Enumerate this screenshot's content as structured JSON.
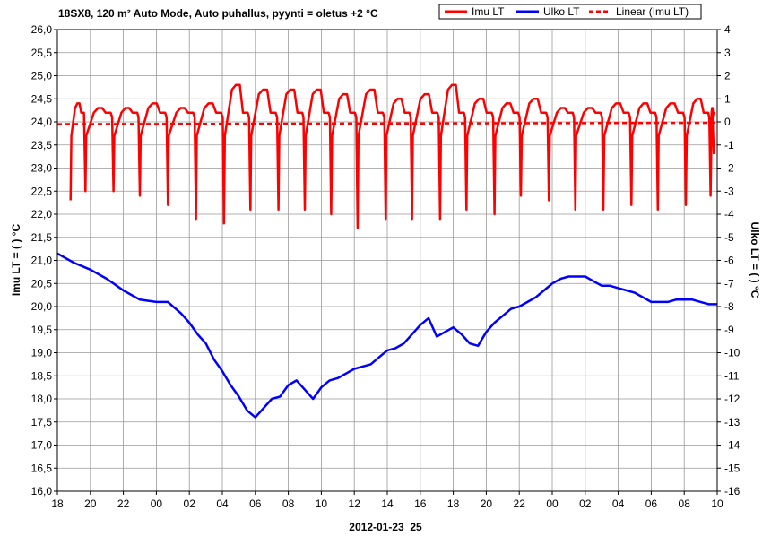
{
  "chart_data": {
    "type": "line",
    "title": "18SX8, 120 m² Auto Mode, Auto puhallus, pyynti = oletus +2 °C",
    "xlabel": "2012-01-23_25",
    "ylabel_left": "Imu LT = ( ) °C",
    "ylabel_right": "Ulko LT = ( ) °C",
    "x_tick_labels": [
      "18",
      "20",
      "22",
      "00",
      "02",
      "04",
      "06",
      "08",
      "10",
      "12",
      "14",
      "16",
      "18",
      "20",
      "22",
      "00",
      "02",
      "04",
      "06",
      "08",
      "10"
    ],
    "y_left_range": [
      16.0,
      26.0
    ],
    "y_left_ticks": [
      "26,0",
      "25,5",
      "25,0",
      "24,5",
      "24,0",
      "23,5",
      "23,0",
      "22,5",
      "22,0",
      "21,5",
      "21,0",
      "20,5",
      "20,0",
      "19,5",
      "19,0",
      "18,5",
      "18,0",
      "17,5",
      "17,0",
      "16,5",
      "16,0"
    ],
    "y_right_range": [
      -16,
      4
    ],
    "y_right_ticks": [
      "4",
      "3",
      "2",
      "1",
      "0",
      "-1",
      "-2",
      "-3",
      "-4",
      "-5",
      "-6",
      "-7",
      "-8",
      "-9",
      "-10",
      "-11",
      "-12",
      "-13",
      "-14",
      "-15",
      "-16"
    ],
    "grid": true,
    "legend_placement": "top-right",
    "x_hours_range": [
      0,
      40
    ],
    "series": [
      {
        "name": "Imu LT",
        "color": "#ff0000",
        "axis": "left",
        "style": "solid",
        "cycles": [
          [
            0.8,
            22.3,
            24.4
          ],
          [
            1.7,
            22.5,
            24.3
          ],
          [
            3.4,
            22.5,
            24.3
          ],
          [
            5.0,
            22.4,
            24.4
          ],
          [
            6.7,
            22.2,
            24.3
          ],
          [
            8.4,
            21.9,
            24.4
          ],
          [
            10.1,
            21.8,
            24.8
          ],
          [
            11.7,
            22.1,
            24.7
          ],
          [
            13.4,
            22.1,
            24.7
          ],
          [
            15.0,
            22.1,
            24.7
          ],
          [
            16.6,
            22.0,
            24.6
          ],
          [
            18.2,
            21.7,
            24.7
          ],
          [
            19.9,
            21.9,
            24.5
          ],
          [
            21.5,
            21.9,
            24.6
          ],
          [
            23.2,
            21.9,
            24.8
          ],
          [
            24.8,
            22.1,
            24.5
          ],
          [
            26.5,
            22.0,
            24.4
          ],
          [
            28.1,
            22.4,
            24.5
          ],
          [
            29.8,
            22.3,
            24.3
          ],
          [
            31.4,
            22.1,
            24.3
          ],
          [
            33.1,
            22.1,
            24.4
          ],
          [
            34.8,
            22.2,
            24.4
          ],
          [
            36.4,
            22.1,
            24.4
          ],
          [
            38.1,
            22.2,
            24.5
          ],
          [
            39.6,
            22.4,
            24.3
          ]
        ],
        "end_point": [
          39.8,
          23.3
        ]
      },
      {
        "name": "Ulko LT",
        "color": "#0000ff",
        "axis": "right",
        "style": "solid",
        "points": [
          [
            0,
            -5.7
          ],
          [
            1,
            -6.1
          ],
          [
            2,
            -6.4
          ],
          [
            3,
            -6.8
          ],
          [
            4,
            -7.3
          ],
          [
            5,
            -7.7
          ],
          [
            6,
            -7.8
          ],
          [
            6.7,
            -7.8
          ],
          [
            7.5,
            -8.3
          ],
          [
            8,
            -8.7
          ],
          [
            8.5,
            -9.2
          ],
          [
            9,
            -9.6
          ],
          [
            9.5,
            -10.3
          ],
          [
            10,
            -10.8
          ],
          [
            10.5,
            -11.4
          ],
          [
            11,
            -11.9
          ],
          [
            11.5,
            -12.5
          ],
          [
            12,
            -12.8
          ],
          [
            12.5,
            -12.4
          ],
          [
            13,
            -12.0
          ],
          [
            13.5,
            -11.9
          ],
          [
            14,
            -11.4
          ],
          [
            14.5,
            -11.2
          ],
          [
            15,
            -11.6
          ],
          [
            15.5,
            -12.0
          ],
          [
            16,
            -11.5
          ],
          [
            16.5,
            -11.2
          ],
          [
            17,
            -11.1
          ],
          [
            17.5,
            -10.9
          ],
          [
            18,
            -10.7
          ],
          [
            18.5,
            -10.6
          ],
          [
            19,
            -10.5
          ],
          [
            19.5,
            -10.2
          ],
          [
            20,
            -9.9
          ],
          [
            20.5,
            -9.8
          ],
          [
            21,
            -9.6
          ],
          [
            21.5,
            -9.2
          ],
          [
            22,
            -8.8
          ],
          [
            22.5,
            -8.5
          ],
          [
            23,
            -9.3
          ],
          [
            23.5,
            -9.1
          ],
          [
            24,
            -8.9
          ],
          [
            24.5,
            -9.2
          ],
          [
            25,
            -9.6
          ],
          [
            25.5,
            -9.7
          ],
          [
            26,
            -9.1
          ],
          [
            26.5,
            -8.7
          ],
          [
            27,
            -8.4
          ],
          [
            27.5,
            -8.1
          ],
          [
            28,
            -8.0
          ],
          [
            28.5,
            -7.8
          ],
          [
            29,
            -7.6
          ],
          [
            29.5,
            -7.3
          ],
          [
            30,
            -7.0
          ],
          [
            30.5,
            -6.8
          ],
          [
            31,
            -6.7
          ],
          [
            32,
            -6.7
          ],
          [
            32.5,
            -6.9
          ],
          [
            33,
            -7.1
          ],
          [
            33.5,
            -7.1
          ],
          [
            34,
            -7.2
          ],
          [
            34.5,
            -7.3
          ],
          [
            35,
            -7.4
          ],
          [
            35.5,
            -7.6
          ],
          [
            36,
            -7.8
          ],
          [
            37,
            -7.8
          ],
          [
            37.5,
            -7.7
          ],
          [
            38,
            -7.7
          ],
          [
            38.5,
            -7.7
          ],
          [
            39,
            -7.8
          ],
          [
            39.5,
            -7.9
          ],
          [
            40,
            -7.9
          ]
        ]
      },
      {
        "name": "Linear (Imu LT)",
        "color": "#ff0000",
        "axis": "left",
        "style": "dashed",
        "points": [
          [
            0,
            23.95
          ],
          [
            40,
            23.98
          ]
        ]
      }
    ]
  }
}
